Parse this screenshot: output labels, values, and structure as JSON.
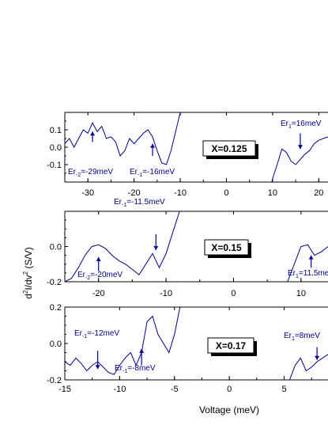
{
  "chart_data": [
    {
      "type": "line",
      "panel_label": "X=0.125",
      "xlim": [
        -35,
        22
      ],
      "ylim": [
        -0.2,
        0.2
      ],
      "x_ticks": [
        -30,
        -20,
        -10,
        0,
        10,
        20
      ],
      "y_ticks": [
        -0.1,
        0.0,
        0.1
      ],
      "y_tick_labels": [
        "-0.1",
        "0.0",
        "0.1"
      ],
      "segments": [
        [
          [
            -35,
            0.02
          ],
          [
            -34,
            0.05
          ],
          [
            -33,
            0.0
          ],
          [
            -32,
            0.05
          ],
          [
            -31,
            0.1
          ],
          [
            -30,
            0.08
          ],
          [
            -29,
            0.14
          ],
          [
            -28,
            0.09
          ],
          [
            -27,
            0.12
          ],
          [
            -26,
            0.05
          ],
          [
            -25,
            0.06
          ],
          [
            -24,
            0.03
          ],
          [
            -23,
            -0.05
          ],
          [
            -22,
            -0.02
          ],
          [
            -21,
            0.05
          ],
          [
            -20,
            0.02
          ],
          [
            -19,
            0.05
          ],
          [
            -18,
            0.08
          ],
          [
            -17,
            0.1
          ],
          [
            -16,
            0.06
          ],
          [
            -15,
            -0.02
          ],
          [
            -14,
            -0.09
          ],
          [
            -13,
            -0.1
          ],
          [
            -12,
            -0.02
          ],
          [
            -11,
            0.09
          ],
          [
            -10,
            0.2
          ]
        ],
        [
          [
            9,
            -0.3
          ],
          [
            10,
            -0.18
          ],
          [
            11,
            -0.1
          ],
          [
            12,
            -0.01
          ],
          [
            13,
            -0.03
          ],
          [
            14,
            -0.08
          ],
          [
            15,
            -0.1
          ],
          [
            16,
            -0.07
          ],
          [
            17,
            -0.04
          ],
          [
            18,
            -0.02
          ],
          [
            19,
            0.02
          ],
          [
            20,
            0.04
          ],
          [
            21,
            0.05
          ],
          [
            22,
            0.06
          ]
        ]
      ],
      "annotations": [
        {
          "base": "Er",
          "sub": "-2",
          "text": "=-29meV",
          "x": -29,
          "arrow_from": 0.03,
          "arrow_to": 0.09
        },
        {
          "base": "Er",
          "sub": "-1",
          "text": "=-16meV",
          "x": -16,
          "arrow_from": -0.05,
          "arrow_to": 0.02
        },
        {
          "base": "Er",
          "sub": "1",
          "text": "=16meV",
          "x": 16,
          "arrow_from": 0.08,
          "arrow_to": -0.01
        }
      ]
    },
    {
      "type": "line",
      "panel_label": "X=0.15",
      "xlim": [
        -25,
        14
      ],
      "ylim": [
        -0.2,
        0.2
      ],
      "x_ticks": [
        -20,
        -10,
        0,
        10
      ],
      "y_ticks": [
        -0.2,
        0.0
      ],
      "y_tick_labels": [
        "-0.2",
        "0.0"
      ],
      "segments": [
        [
          [
            -25,
            -0.2
          ],
          [
            -24,
            -0.18
          ],
          [
            -23,
            -0.12
          ],
          [
            -22,
            -0.05
          ],
          [
            -21,
            0.0
          ],
          [
            -20,
            0.01
          ],
          [
            -19,
            -0.01
          ],
          [
            -18,
            -0.05
          ],
          [
            -17,
            -0.08
          ],
          [
            -16,
            -0.1
          ],
          [
            -15,
            -0.13
          ],
          [
            -14,
            -0.16
          ],
          [
            -13,
            -0.1
          ],
          [
            -12,
            -0.04
          ],
          [
            -11,
            -0.12
          ],
          [
            -10,
            -0.04
          ],
          [
            -9,
            0.08
          ],
          [
            -8,
            0.2
          ]
        ],
        [
          [
            8,
            -0.2
          ],
          [
            9,
            -0.1
          ],
          [
            10,
            0.0
          ],
          [
            11,
            0.01
          ],
          [
            12,
            -0.05
          ],
          [
            13,
            -0.03
          ],
          [
            14,
            0.0
          ]
        ]
      ],
      "annotations": [
        {
          "base": "Er",
          "sub": "-2",
          "text": "=-20meV",
          "x": -20,
          "arrow_from": -0.14,
          "arrow_to": -0.06
        },
        {
          "base": "Er",
          "sub": "-1",
          "text": "=-11.5meV",
          "x": -11.5,
          "arrow_from": 0.07,
          "arrow_to": -0.02
        },
        {
          "base": "Er",
          "sub": "1",
          "text": "=11.5meV",
          "x": 11.5,
          "arrow_from": -0.12,
          "arrow_to": -0.05
        }
      ]
    },
    {
      "type": "line",
      "panel_label": "X=0.17",
      "xlim": [
        -15,
        9
      ],
      "ylim": [
        -0.2,
        0.2
      ],
      "x_ticks": [
        -15,
        -10,
        -5,
        0,
        5
      ],
      "y_ticks": [
        -0.2,
        0.0,
        0.2
      ],
      "y_tick_labels": [
        "-0.2",
        "0.0",
        "0.2"
      ],
      "segments": [
        [
          [
            -15,
            -0.1
          ],
          [
            -14.5,
            -0.12
          ],
          [
            -14,
            -0.08
          ],
          [
            -13.5,
            -0.11
          ],
          [
            -13,
            -0.15
          ],
          [
            -12.5,
            -0.12
          ],
          [
            -12,
            -0.1
          ],
          [
            -11.5,
            -0.13
          ],
          [
            -11,
            -0.16
          ],
          [
            -10.5,
            -0.17
          ],
          [
            -10,
            -0.12
          ],
          [
            -9.5,
            -0.08
          ],
          [
            -9,
            -0.05
          ],
          [
            -8.5,
            -0.12
          ],
          [
            -8,
            -0.05
          ],
          [
            -7.5,
            0.12
          ],
          [
            -7,
            0.15
          ],
          [
            -6.5,
            0.05
          ],
          [
            -6,
            0.0
          ],
          [
            -5.5,
            -0.05
          ],
          [
            -5,
            0.05
          ],
          [
            -4.5,
            0.2
          ]
        ],
        [
          [
            5,
            -0.22
          ],
          [
            5.5,
            -0.2
          ],
          [
            6,
            -0.12
          ],
          [
            6.5,
            -0.08
          ],
          [
            7,
            -0.15
          ],
          [
            7.5,
            -0.13
          ],
          [
            8,
            -0.1
          ],
          [
            8.5,
            -0.08
          ],
          [
            9,
            -0.06
          ]
        ]
      ],
      "annotations": [
        {
          "base": "Er",
          "sub": "-1",
          "text": "=-12meV",
          "x": -12,
          "arrow_from": -0.04,
          "arrow_to": -0.14
        },
        {
          "base": "Er",
          "sub": "-1",
          "text": "=-8meV",
          "x": -8,
          "arrow_from": -0.12,
          "arrow_to": -0.03
        },
        {
          "base": "Er",
          "sub": "1",
          "text": "=8meV",
          "x": 8,
          "arrow_from": -0.02,
          "arrow_to": -0.09
        }
      ]
    }
  ],
  "xlabel": "Voltage (meV)",
  "ylabel_parts": {
    "d": "d",
    "sup1": "2",
    "mid": "I/dv",
    "sup2": "2",
    "unit": " (S/V)"
  }
}
